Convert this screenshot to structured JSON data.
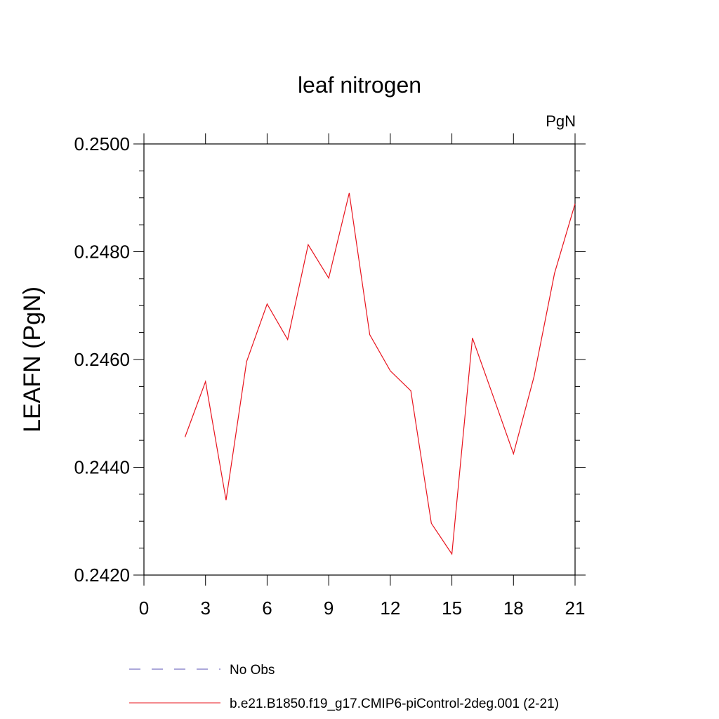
{
  "chart_data": {
    "type": "line",
    "title": "leaf nitrogen",
    "unit_label": "PgN",
    "ylabel": "LEAFN  (PgN)",
    "xlabel": "",
    "xlim": [
      0,
      21
    ],
    "ylim": [
      0.242,
      0.25
    ],
    "x_ticks": [
      0,
      3,
      6,
      9,
      12,
      15,
      18,
      21
    ],
    "x_tick_labels": [
      "0",
      "3",
      "6",
      "9",
      "12",
      "15",
      "18",
      "21"
    ],
    "y_ticks": [
      0.242,
      0.244,
      0.246,
      0.248,
      0.25
    ],
    "y_tick_labels": [
      "0.2420",
      "0.2440",
      "0.2460",
      "0.2480",
      "0.2500"
    ],
    "x_minor_step": 1,
    "y_minor_step": 0.0005,
    "grid": false,
    "legend_position": "bottom-left",
    "series": [
      {
        "name": "b.e21.B1850.f19_g17.CMIP6-piControl-2deg.001 (2-21)",
        "color": "#e8141e",
        "line_style": "solid",
        "x": [
          2,
          3,
          4,
          5,
          6,
          7,
          8,
          9,
          10,
          11,
          12,
          13,
          14,
          15,
          16,
          17,
          18,
          19,
          20,
          21
        ],
        "y": [
          0.24456,
          0.24559,
          0.24339,
          0.24596,
          0.24703,
          0.24637,
          0.24813,
          0.24751,
          0.24909,
          0.24646,
          0.24579,
          0.24542,
          0.24296,
          0.24239,
          0.2464,
          0.24533,
          0.24425,
          0.24568,
          0.2476,
          0.24889
        ]
      }
    ],
    "legend": [
      {
        "label": "No Obs",
        "color": "#5a50b4",
        "line_style": "dashed"
      },
      {
        "label": "b.e21.B1850.f19_g17.CMIP6-piControl-2deg.001 (2-21)",
        "color": "#e8141e",
        "line_style": "solid"
      }
    ]
  }
}
